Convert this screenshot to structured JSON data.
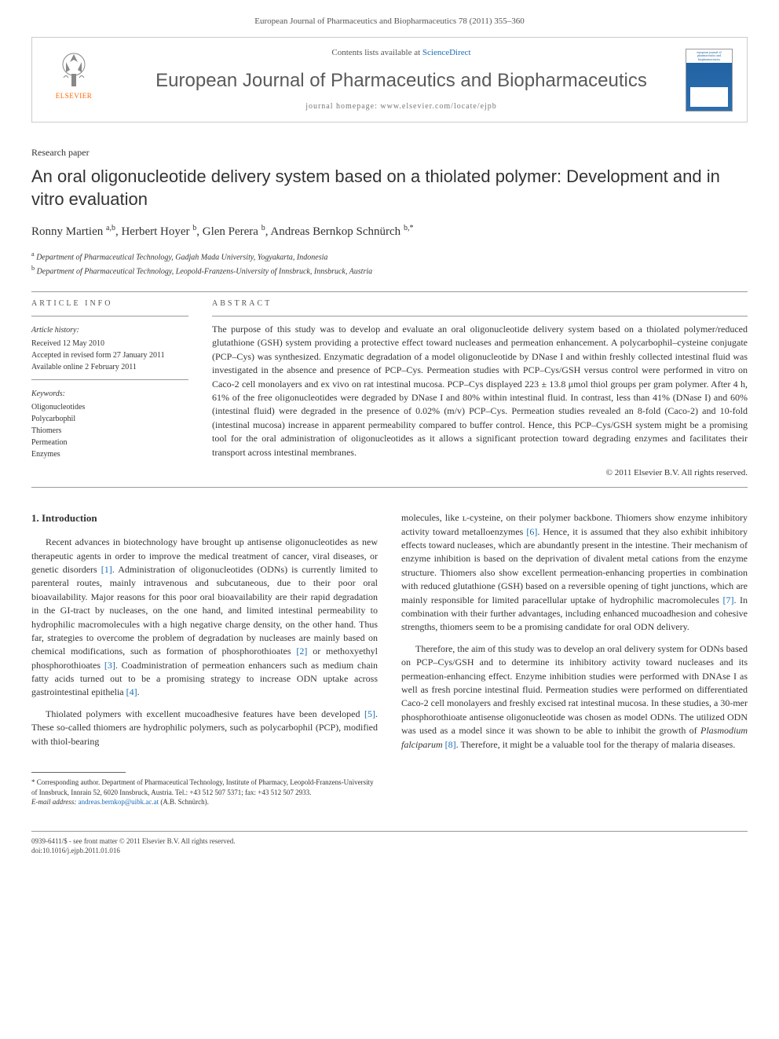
{
  "header_line": "European Journal of Pharmaceutics and Biopharmaceutics 78 (2011) 355–360",
  "banner": {
    "logo_label": "ELSEVIER",
    "contents_prefix": "Contents lists available at ",
    "contents_link": "ScienceDirect",
    "journal_title": "European Journal of Pharmaceutics and Biopharmaceutics",
    "homepage_label": "journal homepage: www.elsevier.com/locate/ejpb",
    "cover_text": "european journal of pharmaceutics and biopharmaceutics"
  },
  "paper_type": "Research paper",
  "title": "An oral oligonucleotide delivery system based on a thiolated polymer: Development and in vitro evaluation",
  "authors_html": "Ronny Martien <sup>a,b</sup>, Herbert Hoyer <sup>b</sup>, Glen Perera <sup>b</sup>, Andreas Bernkop Schnürch <sup>b,*</sup>",
  "affiliations": [
    {
      "sup": "a",
      "text": "Department of Pharmaceutical Technology, Gadjah Mada University, Yogyakarta, Indonesia"
    },
    {
      "sup": "b",
      "text": "Department of Pharmaceutical Technology, Leopold-Franzens-University of Innsbruck, Innsbruck, Austria"
    }
  ],
  "article_info": {
    "heading": "ARTICLE INFO",
    "history_heading": "Article history:",
    "received": "Received 12 May 2010",
    "accepted": "Accepted in revised form 27 January 2011",
    "available": "Available online 2 February 2011",
    "keywords_heading": "Keywords:",
    "keywords": [
      "Oligonucleotides",
      "Polycarbophil",
      "Thiomers",
      "Permeation",
      "Enzymes"
    ]
  },
  "abstract": {
    "heading": "ABSTRACT",
    "text": "The purpose of this study was to develop and evaluate an oral oligonucleotide delivery system based on a thiolated polymer/reduced glutathione (GSH) system providing a protective effect toward nucleases and permeation enhancement. A polycarbophil–cysteine conjugate (PCP–Cys) was synthesized. Enzymatic degradation of a model oligonucleotide by DNase I and within freshly collected intestinal fluid was investigated in the absence and presence of PCP–Cys. Permeation studies with PCP–Cys/GSH versus control were performed in vitro on Caco-2 cell monolayers and ex vivo on rat intestinal mucosa. PCP–Cys displayed 223 ± 13.8 μmol thiol groups per gram polymer. After 4 h, 61% of the free oligonucleotides were degraded by DNase I and 80% within intestinal fluid. In contrast, less than 41% (DNase I) and 60% (intestinal fluid) were degraded in the presence of 0.02% (m/v) PCP–Cys. Permeation studies revealed an 8-fold (Caco-2) and 10-fold (intestinal mucosa) increase in apparent permeability compared to buffer control. Hence, this PCP–Cys/GSH system might be a promising tool for the oral administration of oligonucleotides as it allows a significant protection toward degrading enzymes and facilitates their transport across intestinal membranes.",
    "copyright": "© 2011 Elsevier B.V. All rights reserved."
  },
  "body": {
    "section_heading": "1. Introduction",
    "para1_pre": "Recent advances in biotechnology have brought up antisense oligonucleotides as new therapeutic agents in order to improve the medical treatment of cancer, viral diseases, or genetic disorders ",
    "ref1": "[1]",
    "para1_mid1": ". Administration of oligonucleotides (ODNs) is currently limited to parenteral routes, mainly intravenous and subcutaneous, due to their poor oral bioavailability. Major reasons for this poor oral bioavailability are their rapid degradation in the GI-tract by nucleases, on the one hand, and limited intestinal permeability to hydrophilic macromolecules with a high negative charge density, on the other hand. Thus far, strategies to overcome the problem of degradation by nucleases are mainly based on chemical modifications, such as formation of phosphorothioates ",
    "ref2": "[2]",
    "para1_mid2": " or methoxyethyl phosphorothioates ",
    "ref3": "[3]",
    "para1_mid3": ". Coadministration of permeation enhancers such as medium chain fatty acids turned out to be a promising strategy to increase ODN uptake across gastrointestinal epithelia ",
    "ref4": "[4]",
    "para1_post": ".",
    "para2_pre": "Thiolated polymers with excellent mucoadhesive features have been developed ",
    "ref5": "[5]",
    "para2_post": ". These so-called thiomers are hydrophilic polymers, such as polycarbophil (PCP), modified with thiol-bearing",
    "para3_pre": "molecules, like ʟ-cysteine, on their polymer backbone. Thiomers show enzyme inhibitory activity toward metalloenzymes ",
    "ref6": "[6]",
    "para3_mid1": ". Hence, it is assumed that they also exhibit inhibitory effects toward nucleases, which are abundantly present in the intestine. Their mechanism of enzyme inhibition is based on the deprivation of divalent metal cations from the enzyme structure. Thiomers also show excellent permeation-enhancing properties in combination with reduced glutathione (GSH) based on a reversible opening of tight junctions, which are mainly responsible for limited paracellular uptake of hydrophilic macromolecules ",
    "ref7": "[7]",
    "para3_mid2": ". In combination with their further advantages, including enhanced mucoadhesion and cohesive strengths, thiomers seem to be a promising candidate for oral ODN delivery.",
    "para4_pre": "Therefore, the aim of this study was to develop an oral delivery system for ODNs based on PCP–Cys/GSH and to determine its inhibitory activity toward nucleases and its permeation-enhancing effect. Enzyme inhibition studies were performed with DNAse I as well as fresh porcine intestinal fluid. Permeation studies were performed on differentiated Caco-2 cell monolayers and freshly excised rat intestinal mucosa. In these studies, a 30-mer phosphorothioate antisense oligonucleotide was chosen as model ODNs. The utilized ODN was used as a model since it was shown to be able to inhibit the growth of ",
    "para4_italic": "Plasmodium falciparum",
    "para4_mid": " ",
    "ref8": "[8]",
    "para4_post": ". Therefore, it might be a valuable tool for the therapy of malaria diseases."
  },
  "footnote": {
    "corresponding": "* Corresponding author. Department of Pharmaceutical Technology, Institute of Pharmacy, Leopold-Franzens-University of Innsbruck, Innrain 52, 6020 Innsbruck, Austria. Tel.: +43 512 507 5371; fax: +43 512 507 2933.",
    "email_label": "E-mail address:",
    "email": "andreas.bernkop@uibk.ac.at",
    "email_person": "(A.B. Schnürch)."
  },
  "footer": {
    "line1": "0939-6411/$ - see front matter © 2011 Elsevier B.V. All rights reserved.",
    "line2": "doi:10.1016/j.ejpb.2011.01.016"
  },
  "colors": {
    "link": "#1a6db5",
    "logo_orange": "#ff6600",
    "cover_blue": "#1e5fa0",
    "text": "#333333",
    "rule": "#999999"
  }
}
